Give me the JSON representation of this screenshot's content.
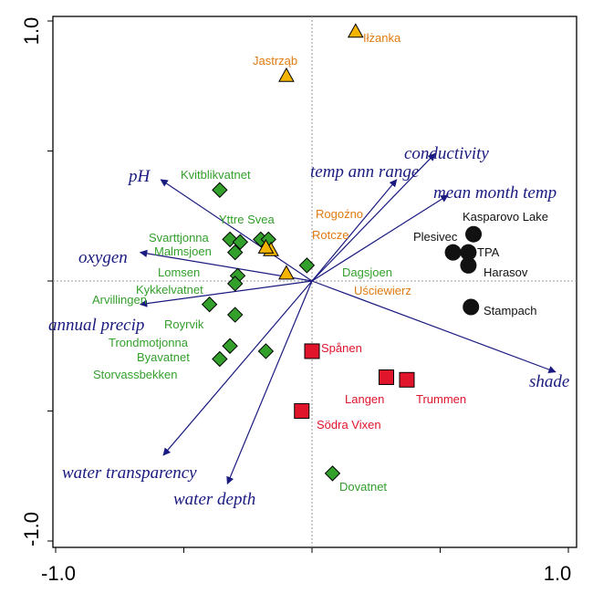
{
  "chart_data": {
    "type": "scatter",
    "title": "",
    "xlabel": "",
    "ylabel": "",
    "xlim": [
      -1.0,
      1.0
    ],
    "ylim": [
      -1.0,
      1.0
    ],
    "x_tick_labels": [
      "-1.0",
      "1.0"
    ],
    "y_tick_labels": [
      "1.0",
      "-1.0"
    ],
    "grid": false,
    "colors": {
      "vector": "#1a1a80",
      "green": "#33a02c",
      "orange": "#f5b400",
      "orange_text": "#e07a10",
      "red": "#e0142b",
      "black": "#111111"
    },
    "vectors": [
      {
        "name": "conductivity",
        "x": 0.48,
        "y": 0.49
      },
      {
        "name": "temp ann range",
        "x": 0.33,
        "y": 0.39
      },
      {
        "name": "mean month temp",
        "x": 0.53,
        "y": 0.33
      },
      {
        "name": "pH",
        "x": -0.59,
        "y": 0.39
      },
      {
        "name": "oxygen",
        "x": -0.67,
        "y": 0.11
      },
      {
        "name": "annual precip",
        "x": -0.67,
        "y": -0.09
      },
      {
        "name": "shade",
        "x": 0.95,
        "y": -0.35
      },
      {
        "name": "water transparency",
        "x": -0.58,
        "y": -0.67
      },
      {
        "name": "water depth",
        "x": -0.33,
        "y": -0.78
      }
    ],
    "series": [
      {
        "marker": "diamond",
        "color": "#33a02c",
        "points": [
          {
            "label": "Kvitblikvatnet",
            "x": -0.36,
            "y": 0.35
          },
          {
            "label": "Yttre Svea",
            "x": -0.2,
            "y": 0.16
          },
          {
            "label": "Svarttjonna",
            "x": -0.32,
            "y": 0.16
          },
          {
            "label": "Malmsjoen",
            "x": -0.3,
            "y": 0.11
          },
          {
            "label": "Lomsen",
            "x": -0.29,
            "y": 0.02
          },
          {
            "label": "Kykkelvatnet",
            "x": -0.3,
            "y": -0.01
          },
          {
            "label": "Arvillingen",
            "x": -0.4,
            "y": -0.09
          },
          {
            "label": "Royrvik",
            "x": -0.3,
            "y": -0.13
          },
          {
            "label": "Trondmotjonna",
            "x": -0.32,
            "y": -0.25
          },
          {
            "label": "Byavatnet",
            "x": -0.36,
            "y": -0.3
          },
          {
            "label": "Storvassbekken",
            "x": -0.18,
            "y": -0.27
          },
          {
            "label": "Dagsjoen",
            "x": -0.02,
            "y": 0.06
          },
          {
            "label": "Dovatnet",
            "x": 0.08,
            "y": -0.74
          },
          {
            "label": "",
            "x": -0.17,
            "y": 0.16
          },
          {
            "label": "",
            "x": -0.28,
            "y": 0.15
          }
        ]
      },
      {
        "marker": "triangle",
        "color": "#f5b400",
        "points": [
          {
            "label": "Iłżanka",
            "x": 0.17,
            "y": 0.96
          },
          {
            "label": "Jastrząb",
            "x": -0.1,
            "y": 0.79
          },
          {
            "label": "Rogoźno",
            "x": -0.16,
            "y": 0.12
          },
          {
            "label": "Rotcze",
            "x": -0.18,
            "y": 0.13
          },
          {
            "label": "Uściewierz",
            "x": -0.1,
            "y": 0.03
          }
        ]
      },
      {
        "marker": "square",
        "color": "#e0142b",
        "points": [
          {
            "label": "Spånen",
            "x": 0.0,
            "y": -0.27
          },
          {
            "label": "Langen",
            "x": 0.29,
            "y": -0.37
          },
          {
            "label": "Trummen",
            "x": 0.37,
            "y": -0.38
          },
          {
            "label": "Södra Vixen",
            "x": -0.04,
            "y": -0.5
          }
        ]
      },
      {
        "marker": "circle",
        "color": "#111111",
        "points": [
          {
            "label": "Kasparovo Lake",
            "x": 0.63,
            "y": 0.18
          },
          {
            "label": "Plesivec",
            "x": 0.55,
            "y": 0.11
          },
          {
            "label": "TPA",
            "x": 0.61,
            "y": 0.11
          },
          {
            "label": "Harasov",
            "x": 0.61,
            "y": 0.06
          },
          {
            "label": "Stampach",
            "x": 0.62,
            "y": -0.1
          }
        ]
      }
    ]
  }
}
